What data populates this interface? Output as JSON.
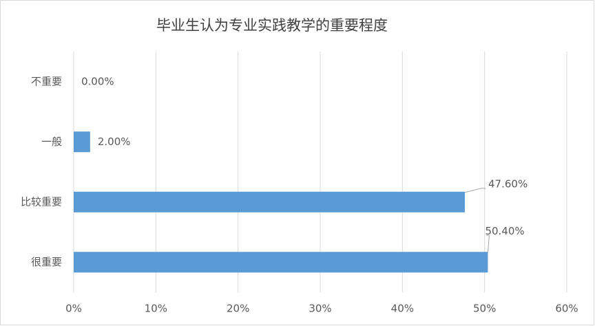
{
  "chart_data": {
    "type": "bar",
    "orientation": "horizontal",
    "title": "毕业生认为专业实践教学的重要程度",
    "categories": [
      "不重要",
      "一般",
      "比较重要",
      "很重要"
    ],
    "values": [
      0,
      2,
      47.6,
      50.4
    ],
    "value_labels": [
      "0.00%",
      "2.00%",
      "47.60%",
      "50.40%"
    ],
    "color": "#5b9bd5",
    "xlim": [
      0,
      60
    ],
    "xticks": [
      {
        "value": 0,
        "label": "0%"
      },
      {
        "value": 10,
        "label": "10%"
      },
      {
        "value": 20,
        "label": "20%"
      },
      {
        "value": 30,
        "label": "30%"
      },
      {
        "value": 40,
        "label": "40%"
      },
      {
        "value": 50,
        "label": "50%"
      },
      {
        "value": 60,
        "label": "60%"
      }
    ],
    "grid": true
  }
}
